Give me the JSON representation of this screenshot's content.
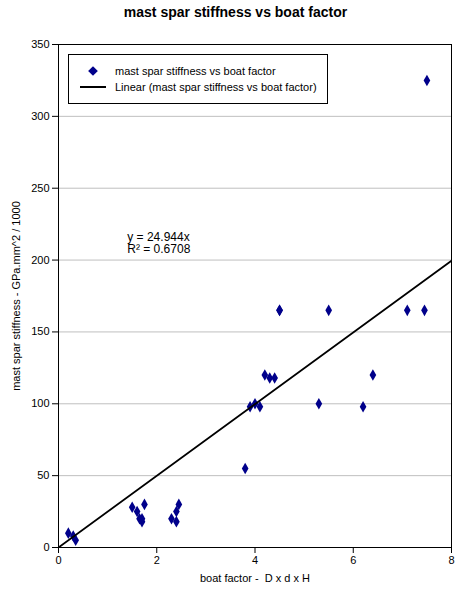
{
  "chart_data": {
    "type": "scatter",
    "title": "mast spar stiffness vs boat factor",
    "xlabel": "boat factor -  D x d x H",
    "ylabel": "mast spar stiffness - GPa.mm^2 / 1000",
    "series": [
      {
        "name": "mast spar stiffness vs boat factor",
        "type": "scatter",
        "color": "#00008B",
        "marker": "diamond",
        "x": [
          0.2,
          0.3,
          0.35,
          1.5,
          1.6,
          1.65,
          1.7,
          1.7,
          1.75,
          2.3,
          2.4,
          2.4,
          2.45,
          3.8,
          3.9,
          4.0,
          4.1,
          4.2,
          4.3,
          4.4,
          4.5,
          4.5,
          5.3,
          5.5,
          6.2,
          6.4,
          7.1,
          7.45,
          7.5
        ],
        "values": [
          10,
          8,
          5,
          28,
          25,
          20,
          20,
          18,
          30,
          20,
          18,
          25,
          30,
          55,
          98,
          100,
          98,
          120,
          118,
          118,
          165,
          165,
          100,
          165,
          98,
          120,
          165,
          165,
          325
        ]
      },
      {
        "name": "Linear (mast spar stiffness vs boat factor)",
        "type": "line",
        "color": "#000000",
        "line_style": "solid",
        "x": [
          0,
          8
        ],
        "values": [
          0,
          199.552
        ]
      }
    ],
    "annotations": [
      {
        "text": "y = 24.944x\nR² = 0.6708",
        "x": 1.4,
        "y": 205
      }
    ],
    "xlim": [
      0,
      8
    ],
    "ylim": [
      0,
      350
    ],
    "xticks": [
      0,
      2,
      4,
      6,
      8
    ],
    "yticks": [
      0,
      50,
      100,
      150,
      200,
      250,
      300,
      350
    ],
    "grid": "y",
    "legend": "upper left"
  }
}
